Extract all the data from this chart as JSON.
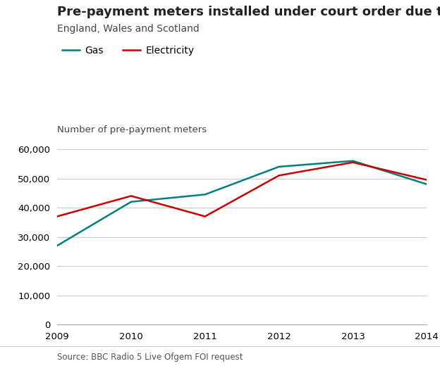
{
  "title": "Pre-payment meters installed under court order due to debt",
  "subtitle": "England, Wales and Scotland",
  "ylabel": "Number of pre-payment meters",
  "source": "Source: BBC Radio 5 Live Ofgem FOI request",
  "years": [
    2009,
    2010,
    2011,
    2012,
    2013,
    2014
  ],
  "gas": [
    27000,
    42000,
    44500,
    54000,
    56000,
    48000
  ],
  "electricity": [
    37000,
    44000,
    37000,
    51000,
    55500,
    49500
  ],
  "gas_color": "#008080",
  "electricity_color": "#cc0000",
  "background_color": "#ffffff",
  "ylim": [
    0,
    60000
  ],
  "yticks": [
    0,
    10000,
    20000,
    30000,
    40000,
    50000,
    60000
  ],
  "title_fontsize": 13,
  "subtitle_fontsize": 10,
  "ylabel_fontsize": 9.5,
  "tick_fontsize": 9.5,
  "source_fontsize": 8.5,
  "legend_fontsize": 10,
  "line_width": 1.8
}
